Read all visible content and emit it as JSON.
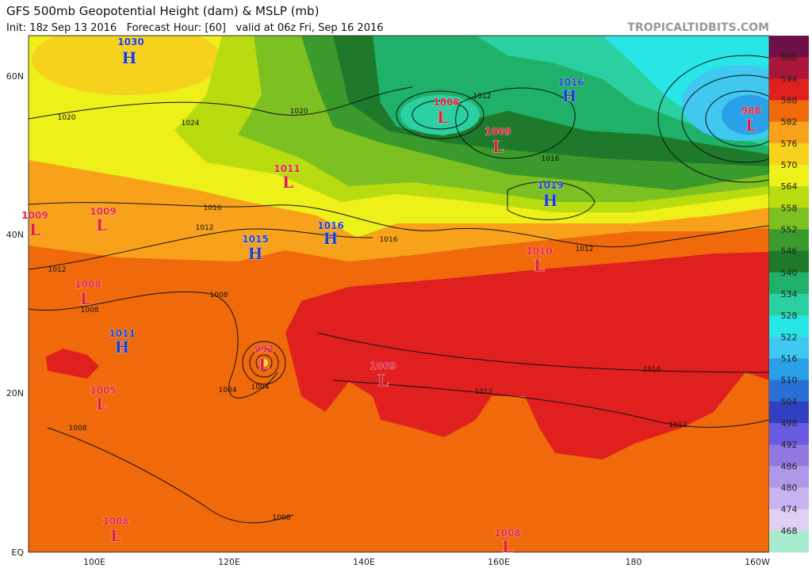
{
  "header": {
    "title": "GFS 500mb Geopotential Height (dam) & MSLP (mb)",
    "subtitle": "Init: 18z Sep 13 2016   Forecast Hour: [60]   valid at 06z Fri, Sep 16 2016",
    "source": "TROPICALTIDBITS.COM"
  },
  "latitude_labels": [
    "60N",
    "40N",
    "20N",
    "EQ"
  ],
  "longitude_labels": [
    "100E",
    "120E",
    "140E",
    "160E",
    "180",
    "160W"
  ],
  "colorbar": {
    "labels": [
      600,
      594,
      588,
      582,
      576,
      570,
      564,
      558,
      552,
      546,
      540,
      534,
      528,
      522,
      516,
      510,
      504,
      498,
      492,
      486,
      480,
      474,
      468
    ],
    "colors": [
      "#6e0f45",
      "#a8163a",
      "#e0201e",
      "#f06a0c",
      "#f8a21c",
      "#f6d21c",
      "#eef01a",
      "#b8dc10",
      "#7cc022",
      "#3a9a2c",
      "#1e7a2a",
      "#1fb06a",
      "#2ad0a0",
      "#28e6e6",
      "#40c8f0",
      "#2aa0e8",
      "#2870d8",
      "#3040c0",
      "#6a5ae0",
      "#9078e0",
      "#b098e8",
      "#c8b4f0",
      "#e0d0f4",
      "#a8ecd0"
    ]
  },
  "pressure_centers": [
    {
      "pressure": "1030",
      "symbol": "H",
      "color": "#1c3fc8"
    },
    {
      "pressure": "1008",
      "symbol": "L",
      "color": "#e0203a"
    },
    {
      "pressure": "1016",
      "symbol": "H",
      "color": "#1c3fc8"
    },
    {
      "pressure": "988",
      "symbol": "L",
      "color": "#e0203a"
    },
    {
      "pressure": "1009",
      "symbol": "L",
      "color": "#e0203a"
    },
    {
      "pressure": "1011",
      "symbol": "L",
      "color": "#e0203a"
    },
    {
      "pressure": "1019",
      "symbol": "H",
      "color": "#1c3fc8"
    },
    {
      "pressure": "1009",
      "symbol": "L",
      "color": "#e0203a"
    },
    {
      "pressure": "1009",
      "symbol": "L",
      "color": "#e0203a"
    },
    {
      "pressure": "1016",
      "symbol": "H",
      "color": "#1c3fc8"
    },
    {
      "pressure": "1015",
      "symbol": "H",
      "color": "#1c3fc8"
    },
    {
      "pressure": "1010",
      "symbol": "L",
      "color": "#e0203a"
    },
    {
      "pressure": "1008",
      "symbol": "L",
      "color": "#e0203a"
    },
    {
      "pressure": "1011",
      "symbol": "H",
      "color": "#1c3fc8"
    },
    {
      "pressure": "992",
      "symbol": "L",
      "color": "#e0203a"
    },
    {
      "pressure": "1009",
      "symbol": "L",
      "color": "#e0203a"
    },
    {
      "pressure": "1005",
      "symbol": "L",
      "color": "#e0203a"
    },
    {
      "pressure": "1008",
      "symbol": "L",
      "color": "#e0203a"
    },
    {
      "pressure": "1008",
      "symbol": "L",
      "color": "#e0203a"
    }
  ],
  "isobar_labels": [
    "1020",
    "1024",
    "1020",
    "1012",
    "1016",
    "1016",
    "1012",
    "1016",
    "1012",
    "1012",
    "1008",
    "1008",
    "1004",
    "1004",
    "1016",
    "1012",
    "1012",
    "1008",
    "1008"
  ]
}
